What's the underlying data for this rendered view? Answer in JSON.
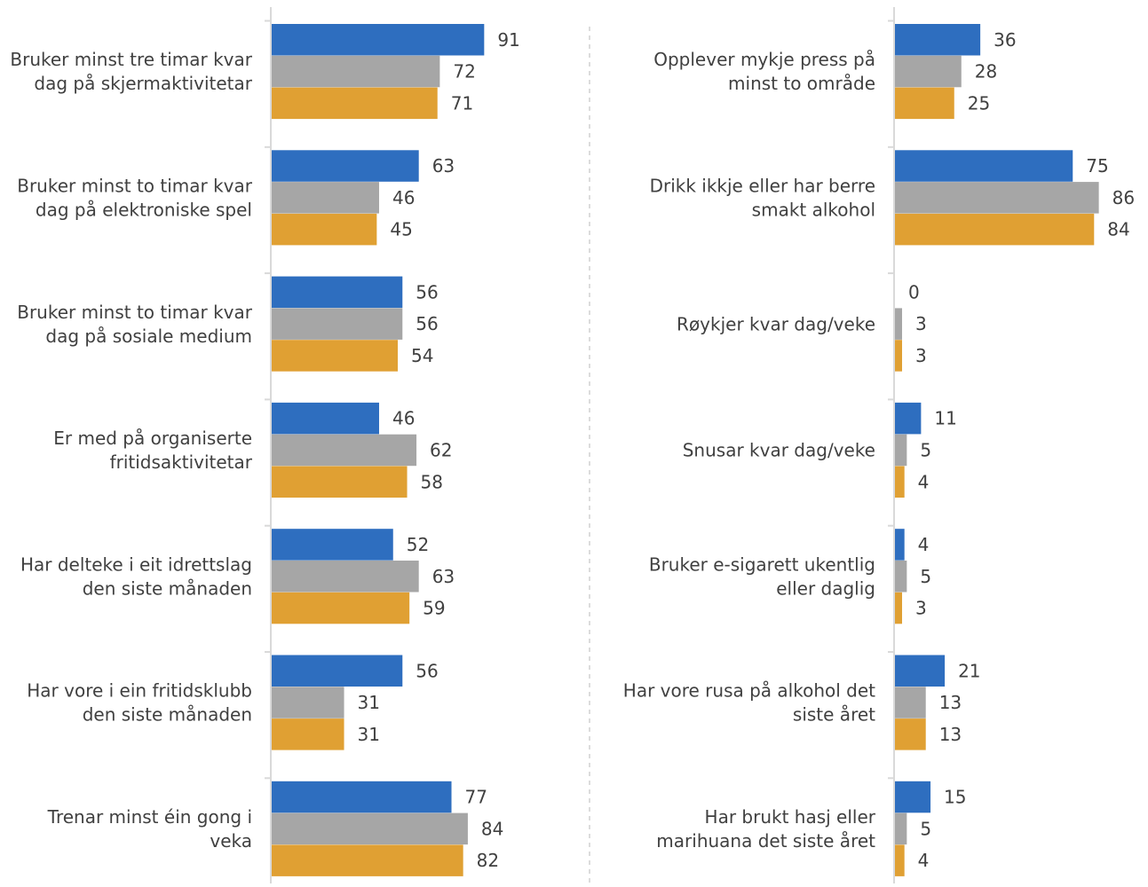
{
  "colors": {
    "series1": "#2e6ebf",
    "series2": "#a6a6a6",
    "series3": "#e0a033"
  },
  "chart_data": [
    {
      "type": "bar",
      "orientation": "horizontal",
      "xlim": [
        0,
        100
      ],
      "grid": false,
      "legend": "none",
      "categories": [
        [
          "Bruker minst tre timar kvar",
          "dag på skjermaktivitetar"
        ],
        [
          "Bruker minst to timar kvar",
          "dag på elektroniske spel"
        ],
        [
          "Bruker minst to timar kvar",
          "dag på sosiale medium"
        ],
        [
          "Er med på organiserte",
          "fritidsaktivitetar"
        ],
        [
          "Har delteke i eit idrettslag",
          "den siste månaden"
        ],
        [
          "Har vore i ein fritidsklubb",
          "den siste månaden"
        ],
        [
          "Trenar minst éin gong i",
          "veka"
        ]
      ],
      "series": [
        {
          "values": [
            91,
            63,
            56,
            46,
            52,
            56,
            77
          ],
          "color": "#2e6ebf"
        },
        {
          "values": [
            72,
            46,
            56,
            62,
            63,
            31,
            84
          ],
          "color": "#a6a6a6"
        },
        {
          "values": [
            71,
            45,
            54,
            58,
            59,
            31,
            82
          ],
          "color": "#e0a033"
        }
      ]
    },
    {
      "type": "bar",
      "orientation": "horizontal",
      "xlim": [
        0,
        100
      ],
      "grid": false,
      "legend": "none",
      "categories": [
        [
          "Opplever mykje press på",
          "minst to område"
        ],
        [
          "Drikk ikkje eller har berre",
          "smakt alkohol"
        ],
        [
          "Røykjer kvar dag/veke"
        ],
        [
          "Snusar kvar dag/veke"
        ],
        [
          "Bruker e-sigarett ukentlig",
          "eller daglig"
        ],
        [
          "Har vore rusa på alkohol det",
          "siste året"
        ],
        [
          "Har brukt hasj eller",
          "marihuana det siste året"
        ]
      ],
      "series": [
        {
          "values": [
            36,
            75,
            0,
            11,
            4,
            21,
            15
          ],
          "color": "#2e6ebf"
        },
        {
          "values": [
            28,
            86,
            3,
            5,
            5,
            13,
            5
          ],
          "color": "#a6a6a6"
        },
        {
          "values": [
            25,
            84,
            3,
            4,
            3,
            13,
            4
          ],
          "color": "#e0a033"
        }
      ]
    }
  ]
}
